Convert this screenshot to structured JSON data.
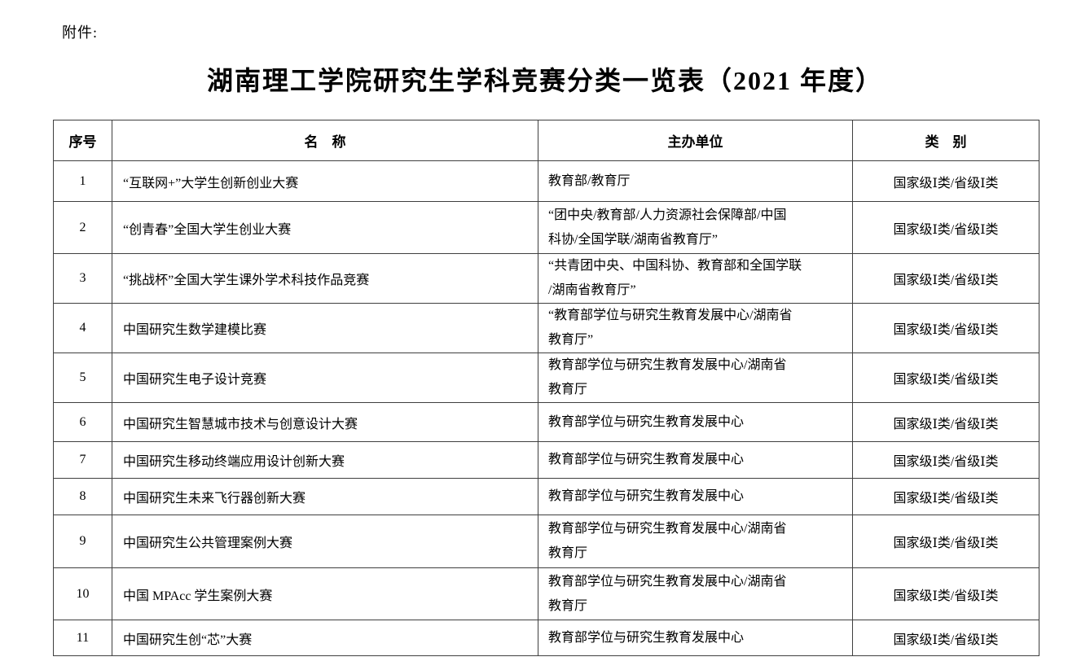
{
  "page": {
    "attachment_label": "附件:",
    "title": "湖南理工学院研究生学科竞赛分类一览表（2021 年度）"
  },
  "table": {
    "headers": [
      "序号",
      "名　称",
      "主办单位",
      "类　别"
    ],
    "rows": [
      {
        "no": "1",
        "name": "“互联网+”大学生创新创业大赛",
        "organizer": "教育部/教育厅",
        "category": "国家级Ⅰ类/省级Ⅰ类"
      },
      {
        "no": "2",
        "name": "“创青春”全国大学生创业大赛",
        "organizer": "“团中央/教育部/人力资源社会保障部/中国\n科协/全国学联/湖南省教育厅”",
        "category": "国家级Ⅰ类/省级Ⅰ类"
      },
      {
        "no": "3",
        "name": "“挑战杯”全国大学生课外学术科技作品竞赛",
        "organizer": "“共青团中央、中国科协、教育部和全国学联\n/湖南省教育厅”",
        "category": "国家级Ⅰ类/省级Ⅰ类"
      },
      {
        "no": "4",
        "name": "中国研究生数学建模比赛",
        "organizer": "“教育部学位与研究生教育发展中心/湖南省\n教育厅”",
        "category": "国家级Ⅰ类/省级Ⅰ类"
      },
      {
        "no": "5",
        "name": "中国研究生电子设计竞赛",
        "organizer": "教育部学位与研究生教育发展中心/湖南省\n教育厅",
        "category": "国家级Ⅰ类/省级Ⅰ类"
      },
      {
        "no": "6",
        "name": "中国研究生智慧城市技术与创意设计大赛",
        "organizer": "教育部学位与研究生教育发展中心",
        "category": "国家级Ⅰ类/省级Ⅰ类"
      },
      {
        "no": "7",
        "name": "中国研究生移动终端应用设计创新大赛",
        "organizer": "教育部学位与研究生教育发展中心",
        "category": "国家级Ⅰ类/省级Ⅰ类"
      },
      {
        "no": "8",
        "name": "中国研究生未来飞行器创新大赛",
        "organizer": "教育部学位与研究生教育发展中心",
        "category": "国家级Ⅰ类/省级Ⅰ类"
      },
      {
        "no": "9",
        "name": "中国研究生公共管理案例大赛",
        "organizer": "教育部学位与研究生教育发展中心/湖南省\n教育厅",
        "category": "国家级Ⅰ类/省级Ⅰ类"
      },
      {
        "no": "10",
        "name": "中国 MPAcc 学生案例大赛",
        "organizer": "教育部学位与研究生教育发展中心/湖南省\n教育厅",
        "category": "国家级Ⅰ类/省级Ⅰ类"
      },
      {
        "no": "11",
        "name": "中国研究生创“芯”大赛",
        "organizer": "教育部学位与研究生教育发展中心",
        "category": "国家级Ⅰ类/省级Ⅰ类"
      }
    ]
  },
  "colors": {
    "text": "#000000",
    "border": "#3f3f3f",
    "background": "#ffffff"
  }
}
